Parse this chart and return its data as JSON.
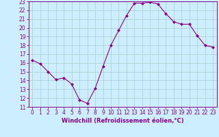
{
  "x": [
    0,
    1,
    2,
    3,
    4,
    5,
    6,
    7,
    8,
    9,
    10,
    11,
    12,
    13,
    14,
    15,
    16,
    17,
    18,
    19,
    20,
    21,
    22,
    23
  ],
  "y": [
    16.3,
    15.9,
    15.0,
    14.1,
    14.3,
    13.6,
    11.8,
    11.4,
    13.1,
    15.6,
    18.0,
    19.7,
    21.4,
    22.8,
    22.8,
    22.9,
    22.7,
    21.6,
    20.7,
    20.4,
    20.4,
    19.1,
    18.0,
    17.8
  ],
  "line_color": "#880088",
  "marker": "D",
  "marker_size": 2,
  "background_color": "#cceeff",
  "grid_color": "#aacccc",
  "xlabel": "Windchill (Refroidissement éolien,°C)",
  "ylim": [
    11,
    23
  ],
  "xlim": [
    -0.5,
    23.5
  ],
  "yticks": [
    11,
    12,
    13,
    14,
    15,
    16,
    17,
    18,
    19,
    20,
    21,
    22,
    23
  ],
  "xticks": [
    0,
    1,
    2,
    3,
    4,
    5,
    6,
    7,
    8,
    9,
    10,
    11,
    12,
    13,
    14,
    15,
    16,
    17,
    18,
    19,
    20,
    21,
    22,
    23
  ],
  "tick_fontsize": 5.5,
  "xlabel_fontsize": 6.0
}
